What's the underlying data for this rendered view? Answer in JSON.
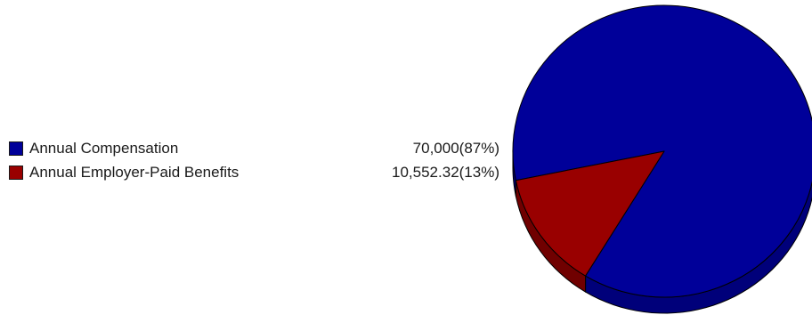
{
  "chart_data": {
    "type": "pie",
    "title": "",
    "slices": [
      {
        "label": "Annual Compensation",
        "value": 70000,
        "value_text": "70,000(87%)",
        "color": "#000099",
        "side_color": "#00007a"
      },
      {
        "label": "Annual Employer-Paid Benefits",
        "value": 10552.32,
        "value_text": "10,552.32(13%)",
        "color": "#990000",
        "side_color": "#700000"
      }
    ],
    "legend_position": "left",
    "style": "3d"
  }
}
